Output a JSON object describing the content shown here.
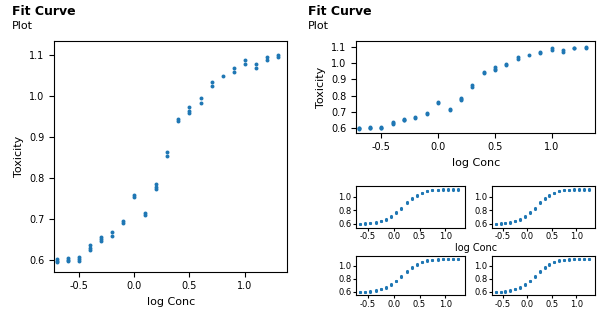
{
  "chart_data": [
    {
      "type": "scatter",
      "title": "Fit Curve",
      "subtitle": "Plot",
      "xlabel": "log Conc",
      "ylabel": "Toxicity",
      "x": [
        -0.7,
        -0.7,
        -0.7,
        -0.6,
        -0.6,
        -0.6,
        -0.5,
        -0.5,
        -0.5,
        -0.4,
        -0.4,
        -0.4,
        -0.3,
        -0.3,
        -0.3,
        -0.2,
        -0.2,
        -0.1,
        -0.1,
        0.0,
        0.0,
        0.1,
        0.1,
        0.2,
        0.2,
        0.2,
        0.3,
        0.3,
        0.4,
        0.4,
        0.5,
        0.5,
        0.5,
        0.6,
        0.6,
        0.7,
        0.7,
        0.8,
        0.9,
        0.9,
        1.0,
        1.0,
        1.1,
        1.1,
        1.2,
        1.2,
        1.3,
        1.3
      ],
      "values": [
        0.595,
        0.598,
        0.602,
        0.598,
        0.601,
        0.605,
        0.598,
        0.603,
        0.608,
        0.625,
        0.63,
        0.638,
        0.648,
        0.652,
        0.658,
        0.66,
        0.668,
        0.69,
        0.695,
        0.755,
        0.76,
        0.71,
        0.715,
        0.775,
        0.78,
        0.785,
        0.855,
        0.865,
        0.94,
        0.945,
        0.96,
        0.965,
        0.975,
        0.985,
        0.995,
        1.025,
        1.035,
        1.05,
        1.06,
        1.07,
        1.08,
        1.09,
        1.07,
        1.08,
        1.09,
        1.095,
        1.095,
        1.1
      ],
      "xlim": [
        -0.72,
        1.38
      ],
      "ylim": [
        0.572,
        1.135
      ],
      "xticks": [
        -0.5,
        0.0,
        0.5,
        1.0
      ],
      "yticks": [
        0.6,
        0.7,
        0.8,
        0.9,
        1.0,
        1.1
      ]
    },
    {
      "type": "scatter",
      "title": "Fit Curve",
      "subtitle": "Plot",
      "xlabel": "log Conc",
      "ylabel": "Toxicity",
      "x": [
        -0.7,
        -0.7,
        -0.7,
        -0.6,
        -0.6,
        -0.6,
        -0.5,
        -0.5,
        -0.5,
        -0.4,
        -0.4,
        -0.4,
        -0.3,
        -0.3,
        -0.3,
        -0.2,
        -0.2,
        -0.1,
        -0.1,
        0.0,
        0.0,
        0.1,
        0.1,
        0.2,
        0.2,
        0.2,
        0.3,
        0.3,
        0.4,
        0.4,
        0.5,
        0.5,
        0.5,
        0.6,
        0.6,
        0.7,
        0.7,
        0.8,
        0.9,
        0.9,
        1.0,
        1.0,
        1.1,
        1.1,
        1.2,
        1.2,
        1.3,
        1.3
      ],
      "values": [
        0.595,
        0.598,
        0.602,
        0.598,
        0.601,
        0.605,
        0.598,
        0.603,
        0.608,
        0.625,
        0.63,
        0.638,
        0.648,
        0.652,
        0.658,
        0.66,
        0.668,
        0.69,
        0.695,
        0.755,
        0.76,
        0.71,
        0.715,
        0.775,
        0.78,
        0.785,
        0.855,
        0.865,
        0.94,
        0.945,
        0.96,
        0.965,
        0.975,
        0.985,
        0.995,
        1.025,
        1.035,
        1.05,
        1.06,
        1.07,
        1.08,
        1.09,
        1.07,
        1.08,
        1.09,
        1.095,
        1.095,
        1.1
      ],
      "xlim": [
        -0.72,
        1.38
      ],
      "ylim": [
        0.572,
        1.135
      ],
      "xticks": [
        -0.5,
        0.0,
        0.5,
        1.0
      ],
      "yticks": [
        0.6,
        0.7,
        0.8,
        0.9,
        1.0,
        1.1
      ]
    },
    {
      "type": "scatter",
      "xlabel": "log Conc",
      "x": [
        -0.65,
        -0.65,
        -0.55,
        -0.55,
        -0.45,
        -0.45,
        -0.35,
        -0.35,
        -0.25,
        -0.25,
        -0.15,
        -0.15,
        -0.05,
        -0.05,
        0.05,
        0.05,
        0.15,
        0.15,
        0.25,
        0.25,
        0.35,
        0.35,
        0.45,
        0.45,
        0.55,
        0.55,
        0.65,
        0.65,
        0.75,
        0.75,
        0.85,
        0.85,
        0.95,
        0.95,
        1.05,
        1.05,
        1.15,
        1.15,
        1.25,
        1.25
      ],
      "values": [
        0.598,
        0.602,
        0.6,
        0.605,
        0.605,
        0.61,
        0.618,
        0.625,
        0.635,
        0.642,
        0.66,
        0.668,
        0.7,
        0.71,
        0.76,
        0.77,
        0.82,
        0.83,
        0.91,
        0.92,
        0.97,
        0.98,
        1.02,
        1.03,
        1.055,
        1.065,
        1.08,
        1.09,
        1.095,
        1.1,
        1.1,
        1.105,
        1.105,
        1.11,
        1.108,
        1.112,
        1.108,
        1.112,
        1.108,
        1.112
      ],
      "xlim": [
        -0.72,
        1.38
      ],
      "ylim": [
        0.545,
        1.155
      ],
      "xticks": [
        -0.5,
        0.0,
        0.5,
        1.0
      ],
      "yticks": [
        0.6,
        0.8,
        1.0
      ]
    },
    {
      "type": "scatter",
      "x": [
        -0.65,
        -0.65,
        -0.55,
        -0.55,
        -0.45,
        -0.45,
        -0.35,
        -0.35,
        -0.25,
        -0.25,
        -0.15,
        -0.15,
        -0.05,
        -0.05,
        0.05,
        0.05,
        0.15,
        0.15,
        0.25,
        0.25,
        0.35,
        0.35,
        0.45,
        0.45,
        0.55,
        0.55,
        0.65,
        0.65,
        0.75,
        0.75,
        0.85,
        0.85,
        0.95,
        0.95,
        1.05,
        1.05,
        1.15,
        1.15,
        1.25,
        1.25
      ],
      "values": [
        0.598,
        0.602,
        0.6,
        0.605,
        0.605,
        0.61,
        0.618,
        0.625,
        0.635,
        0.642,
        0.66,
        0.668,
        0.7,
        0.71,
        0.76,
        0.77,
        0.82,
        0.83,
        0.91,
        0.92,
        0.97,
        0.98,
        1.02,
        1.03,
        1.055,
        1.065,
        1.08,
        1.09,
        1.095,
        1.1,
        1.1,
        1.105,
        1.105,
        1.11,
        1.108,
        1.112,
        1.108,
        1.112,
        1.108,
        1.112
      ],
      "xlim": [
        -0.72,
        1.38
      ],
      "ylim": [
        0.545,
        1.155
      ],
      "xticks": [
        -0.5,
        0.0,
        0.5,
        1.0
      ],
      "yticks": [
        0.6,
        0.8,
        1.0
      ]
    },
    {
      "type": "scatter",
      "x": [
        -0.65,
        -0.65,
        -0.55,
        -0.55,
        -0.45,
        -0.45,
        -0.35,
        -0.35,
        -0.25,
        -0.25,
        -0.15,
        -0.15,
        -0.05,
        -0.05,
        0.05,
        0.05,
        0.15,
        0.15,
        0.25,
        0.25,
        0.35,
        0.35,
        0.45,
        0.45,
        0.55,
        0.55,
        0.65,
        0.65,
        0.75,
        0.75,
        0.85,
        0.85,
        0.95,
        0.95,
        1.05,
        1.05,
        1.15,
        1.15,
        1.25,
        1.25
      ],
      "values": [
        0.598,
        0.602,
        0.6,
        0.605,
        0.605,
        0.61,
        0.618,
        0.625,
        0.64,
        0.648,
        0.662,
        0.67,
        0.705,
        0.715,
        0.765,
        0.775,
        0.83,
        0.84,
        0.915,
        0.925,
        0.975,
        0.985,
        1.022,
        1.032,
        1.055,
        1.065,
        1.08,
        1.09,
        1.095,
        1.1,
        1.1,
        1.105,
        1.105,
        1.11,
        1.108,
        1.112,
        1.108,
        1.112,
        1.108,
        1.112
      ],
      "xlim": [
        -0.72,
        1.38
      ],
      "ylim": [
        0.545,
        1.155
      ],
      "xticks": [
        -0.5,
        0.0,
        0.5,
        1.0
      ],
      "yticks": [
        0.6,
        0.8,
        1.0
      ]
    },
    {
      "type": "scatter",
      "x": [
        -0.65,
        -0.65,
        -0.55,
        -0.55,
        -0.45,
        -0.45,
        -0.35,
        -0.35,
        -0.25,
        -0.25,
        -0.15,
        -0.15,
        -0.05,
        -0.05,
        0.05,
        0.05,
        0.15,
        0.15,
        0.25,
        0.25,
        0.35,
        0.35,
        0.45,
        0.45,
        0.55,
        0.55,
        0.65,
        0.65,
        0.75,
        0.75,
        0.85,
        0.85,
        0.95,
        0.95,
        1.05,
        1.05,
        1.15,
        1.15,
        1.25,
        1.25
      ],
      "values": [
        0.598,
        0.602,
        0.6,
        0.605,
        0.605,
        0.61,
        0.618,
        0.625,
        0.64,
        0.648,
        0.662,
        0.67,
        0.705,
        0.715,
        0.765,
        0.775,
        0.83,
        0.84,
        0.915,
        0.925,
        0.975,
        0.985,
        1.022,
        1.032,
        1.055,
        1.065,
        1.08,
        1.09,
        1.095,
        1.1,
        1.1,
        1.105,
        1.105,
        1.11,
        1.108,
        1.112,
        1.108,
        1.112,
        1.108,
        1.112
      ],
      "xlim": [
        -0.72,
        1.38
      ],
      "ylim": [
        0.545,
        1.155
      ],
      "xticks": [
        -0.5,
        0.0,
        0.5,
        1.0
      ],
      "yticks": [
        0.6,
        0.8,
        1.0
      ]
    }
  ]
}
